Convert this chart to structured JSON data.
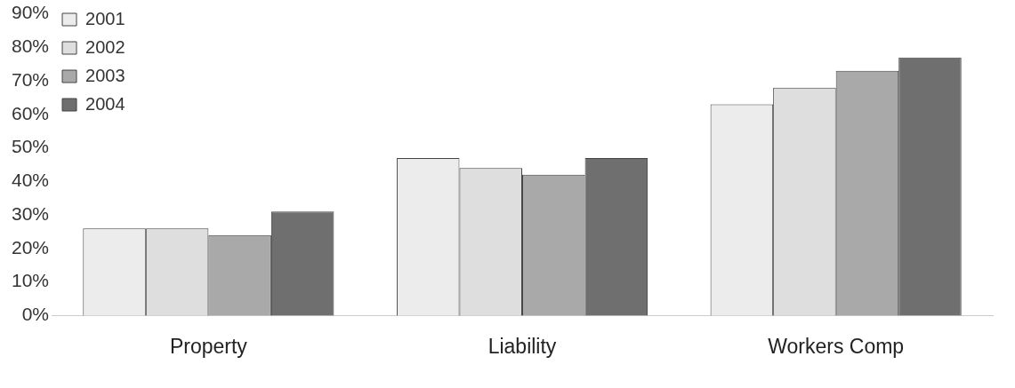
{
  "chart_data": {
    "type": "bar",
    "categories": [
      "Property",
      "Liability",
      "Workers Comp"
    ],
    "series": [
      {
        "name": "2001",
        "color": "#ececec",
        "values": [
          26,
          47,
          63
        ]
      },
      {
        "name": "2002",
        "color": "#dedede",
        "values": [
          26,
          44,
          68
        ]
      },
      {
        "name": "2003",
        "color": "#a9a9a9",
        "values": [
          24,
          42,
          73
        ]
      },
      {
        "name": "2004",
        "color": "#6f6f6f",
        "values": [
          31,
          47,
          77
        ]
      }
    ],
    "ylim": [
      0,
      90
    ],
    "yticks": [
      {
        "value": 0,
        "label": "0%"
      },
      {
        "value": 10,
        "label": "10%"
      },
      {
        "value": 20,
        "label": "20%"
      },
      {
        "value": 30,
        "label": "30%"
      },
      {
        "value": 40,
        "label": "40%"
      },
      {
        "value": 50,
        "label": "50%"
      },
      {
        "value": 60,
        "label": "60%"
      },
      {
        "value": 70,
        "label": "70%"
      },
      {
        "value": 80,
        "label": "80%"
      },
      {
        "value": 90,
        "label": "90%"
      }
    ],
    "grid": false,
    "legend": "top left"
  }
}
